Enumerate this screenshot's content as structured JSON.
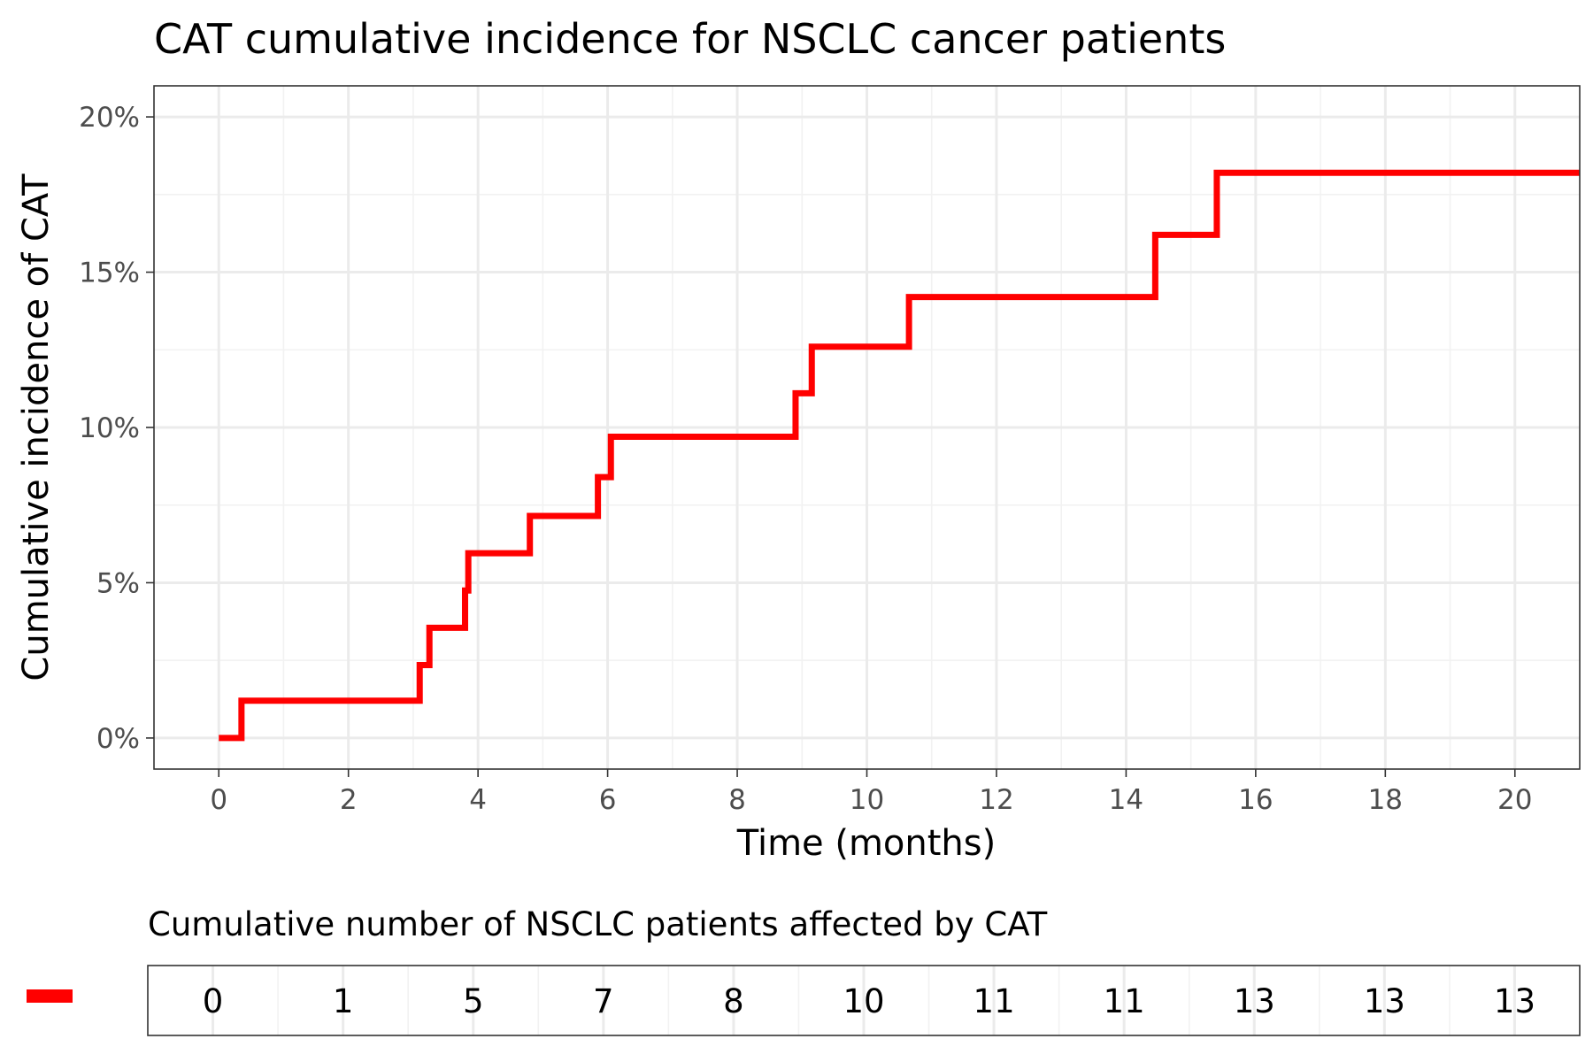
{
  "chart_data": {
    "type": "line",
    "subtype": "step",
    "title": "CAT cumulative incidence for NSCLC cancer patients",
    "xlabel": "Time (months)",
    "ylabel": "Cumulative incidence of CAT",
    "xlim": [
      -1,
      21
    ],
    "ylim": [
      -1,
      21
    ],
    "x_ticks": [
      0,
      2,
      4,
      6,
      8,
      10,
      12,
      14,
      16,
      18,
      20
    ],
    "x_tick_labels": [
      "0",
      "2",
      "4",
      "6",
      "8",
      "10",
      "12",
      "14",
      "16",
      "18",
      "20"
    ],
    "y_ticks": [
      0,
      5,
      10,
      15,
      20
    ],
    "y_tick_labels": [
      "0%",
      "5%",
      "10%",
      "15%",
      "20%"
    ],
    "grid": true,
    "series": [
      {
        "name": "NSCLC",
        "color": "#ff0000",
        "x": [
          0,
          0.35,
          3.1,
          3.25,
          3.8,
          3.85,
          4.8,
          5.85,
          6.05,
          8.9,
          9.15,
          10.65,
          14.45,
          15.4,
          21
        ],
        "y": [
          0,
          1.2,
          2.35,
          3.55,
          4.75,
          5.95,
          7.15,
          8.4,
          9.7,
          11.1,
          12.6,
          14.2,
          16.2,
          18.2,
          18.2
        ]
      }
    ],
    "risk_table": {
      "title": "Cumulative number of NSCLC patients affected by CAT",
      "times": [
        0,
        2,
        4,
        6,
        8,
        10,
        12,
        14,
        16,
        18,
        20
      ],
      "values": [
        "0",
        "1",
        "5",
        "7",
        "8",
        "10",
        "11",
        "11",
        "13",
        "13",
        "13"
      ]
    }
  }
}
